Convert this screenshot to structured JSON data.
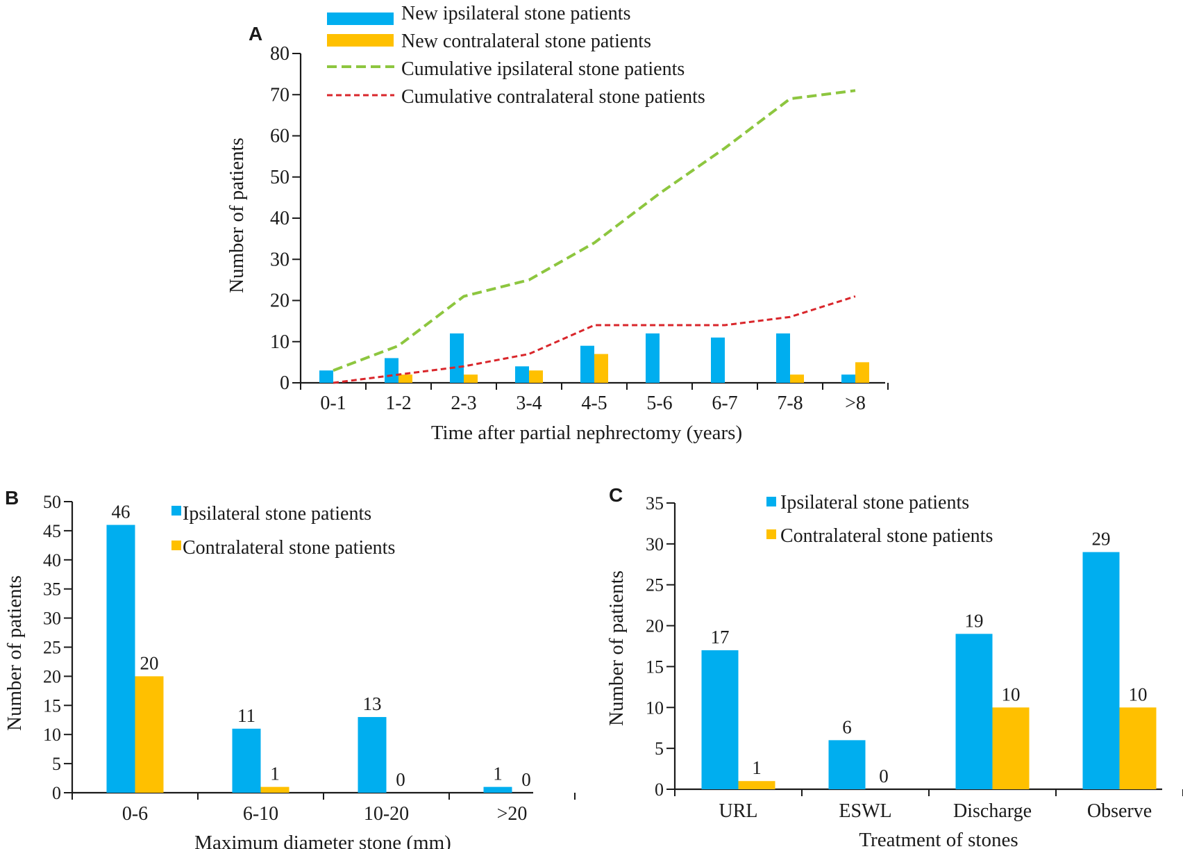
{
  "colors": {
    "ipsilateral": "#00AEEF",
    "contralateral": "#FFC000",
    "cumulative_ipsilateral": "#8DC63F",
    "cumulative_contralateral": "#D9262B"
  },
  "chart_data": [
    {
      "panel": "A",
      "type": "bar",
      "title": "",
      "xlabel": "Time after partial nephrectomy (years)",
      "ylabel": "Number of patients",
      "ylim": [
        0,
        80
      ],
      "yticks": [
        0,
        10,
        20,
        30,
        40,
        50,
        60,
        70,
        80
      ],
      "categories": [
        "0-1",
        "1-2",
        "2-3",
        "3-4",
        "4-5",
        "5-6",
        "6-7",
        "7-8",
        ">8"
      ],
      "series": [
        {
          "name": "New ipsilateral stone patients",
          "type": "bar",
          "values": [
            3,
            6,
            12,
            4,
            9,
            12,
            11,
            12,
            2
          ]
        },
        {
          "name": "New contralateral stone patients",
          "type": "bar",
          "values": [
            0,
            2,
            2,
            3,
            7,
            0,
            0,
            2,
            5
          ]
        },
        {
          "name": "Cumulative ipsilateral stone patients",
          "type": "line",
          "values": [
            3,
            9,
            21,
            25,
            34,
            46,
            57,
            69,
            71
          ]
        },
        {
          "name": "Cumulative contralateral stone patients",
          "type": "line",
          "values": [
            0,
            2,
            4,
            7,
            14,
            14,
            14,
            16,
            21
          ]
        }
      ],
      "legend": "top"
    },
    {
      "panel": "B",
      "type": "bar",
      "title": "",
      "xlabel": "Maximum diameter stone (mm)",
      "ylabel": "Number of patients",
      "ylim": [
        0,
        50
      ],
      "yticks": [
        0,
        5,
        10,
        15,
        20,
        25,
        30,
        35,
        40,
        45,
        50
      ],
      "categories": [
        "0-6",
        "6-10",
        "10-20",
        ">20"
      ],
      "series": [
        {
          "name": "Ipsilateral stone patients",
          "values": [
            46,
            11,
            13,
            1
          ]
        },
        {
          "name": "Contralateral stone patients",
          "values": [
            20,
            1,
            0,
            0
          ]
        }
      ],
      "data_labels": true,
      "legend": "top-right"
    },
    {
      "panel": "C",
      "type": "bar",
      "title": "",
      "xlabel": "Treatment of stones",
      "ylabel": "Number of patients",
      "ylim": [
        0,
        35
      ],
      "yticks": [
        0,
        5,
        10,
        15,
        20,
        25,
        30,
        35
      ],
      "categories": [
        "URL",
        "ESWL",
        "Discharge",
        "Observe"
      ],
      "series": [
        {
          "name": "Ipsilateral stone patients",
          "values": [
            17,
            6,
            19,
            29
          ]
        },
        {
          "name": "Contralateral stone patients",
          "values": [
            1,
            0,
            10,
            10
          ]
        }
      ],
      "data_labels": true,
      "legend": "top"
    }
  ]
}
